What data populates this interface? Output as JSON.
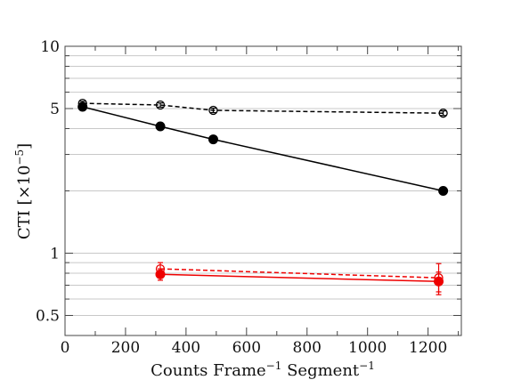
{
  "chart_data": {
    "type": "line",
    "title": "",
    "xlabel": "Counts Frame",
    "xlabel_parts": {
      "t1": "Counts Frame",
      "sup1": "−1",
      "t2": " Segment",
      "sup2": "−1"
    },
    "ylabel": "CTI [×10",
    "ylabel_parts": {
      "t1": "CTI [×10",
      "sup": "−5",
      "t2": "]"
    },
    "xlim": [
      0,
      1310
    ],
    "ylim": [
      0.4,
      10
    ],
    "yscale": "log",
    "grid": "horizontal",
    "legend": "none",
    "xticks": [
      0,
      200,
      400,
      600,
      800,
      1000,
      1200
    ],
    "xtick_labels": [
      "0",
      "200",
      "400",
      "600",
      "800",
      "1000",
      "1200"
    ],
    "yticks_major": [
      0.5,
      1,
      5,
      10
    ],
    "ytick_labels": [
      "0.5",
      "1",
      "5",
      "10"
    ],
    "yticks_minor": [
      0.6,
      0.7,
      0.8,
      0.9,
      2,
      3,
      4,
      6,
      7,
      8,
      9
    ],
    "series": [
      {
        "color": "#000000",
        "dashed": true,
        "marker": "open",
        "x": [
          58,
          315,
          490,
          1250
        ],
        "y": [
          5.3,
          5.2,
          4.9,
          4.75
        ],
        "yerr": [
          0.12,
          0.12,
          0.12,
          0.12
        ]
      },
      {
        "color": "#000000",
        "dashed": false,
        "marker": "filled",
        "x": [
          58,
          315,
          490,
          1250
        ],
        "y": [
          5.1,
          4.1,
          3.55,
          2.0
        ],
        "yerr": [
          0,
          0,
          0,
          0
        ]
      },
      {
        "color": "#ee0000",
        "dashed": true,
        "marker": "open",
        "x": [
          315,
          1235
        ],
        "y": [
          0.84,
          0.76
        ],
        "yerr": [
          0.06,
          0.13
        ]
      },
      {
        "color": "#ee0000",
        "dashed": false,
        "marker": "filled",
        "x": [
          315,
          1235
        ],
        "y": [
          0.79,
          0.73
        ],
        "yerr": [
          0.05,
          0.08
        ]
      }
    ]
  }
}
